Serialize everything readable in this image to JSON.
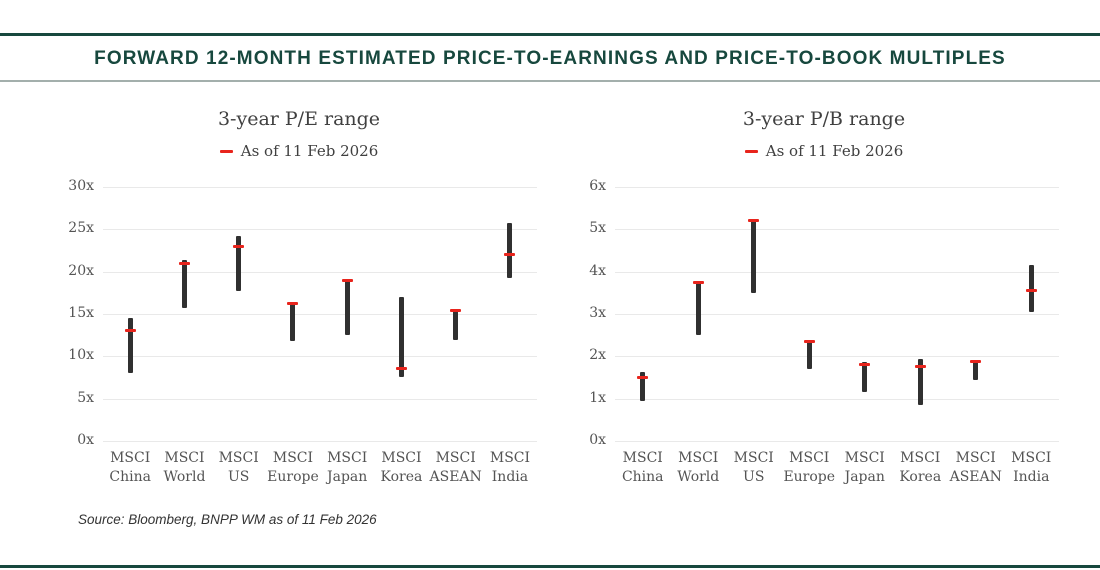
{
  "page": {
    "header_title": "FORWARD 12-MONTH ESTIMATED PRICE-TO-EARNINGS AND PRICE-TO-BOOK MULTIPLES",
    "source_note": "Source: Bloomberg, BNPP WM as of 11 Feb 2026"
  },
  "colors": {
    "accent_teal": "#17483E",
    "divider_gray": "#A3AFAC",
    "bar_dark": "#303030",
    "marker_red": "#E8241C",
    "gridline": "#E9E9E9",
    "chart_text": "#404040",
    "axis_text": "#545454"
  },
  "chart_data": [
    {
      "type": "bar",
      "subtype": "floating-range-bar-with-marker",
      "title": "3-year P/E range",
      "legend_label": "As of 11 Feb 2026",
      "legend_marker": "red-dash",
      "unit_suffix": "x",
      "ylim": [
        0,
        30
      ],
      "ytick_step": 5,
      "ytick_labels": [
        "0x",
        "5x",
        "10x",
        "15x",
        "20x",
        "25x",
        "30x"
      ],
      "grid": "horizontal-only",
      "categories": [
        "MSCI China",
        "MSCI World",
        "MSCI US",
        "MSCI Europe",
        "MSCI Japan",
        "MSCI Korea",
        "MSCI ASEAN",
        "MSCI India"
      ],
      "series": [
        {
          "name": "3-year range low",
          "values": [
            8.0,
            15.7,
            17.7,
            11.8,
            12.5,
            7.6,
            11.9,
            19.2
          ]
        },
        {
          "name": "3-year range high",
          "values": [
            14.5,
            21.4,
            24.2,
            16.4,
            19.1,
            17.0,
            15.5,
            25.7
          ]
        },
        {
          "name": "As of 11 Feb 2026",
          "values": [
            13.0,
            21.0,
            23.0,
            16.3,
            19.0,
            8.6,
            15.4,
            22.0
          ]
        }
      ]
    },
    {
      "type": "bar",
      "subtype": "floating-range-bar-with-marker",
      "title": "3-year P/B range",
      "legend_label": "As of 11 Feb 2026",
      "legend_marker": "red-dash",
      "unit_suffix": "x",
      "ylim": [
        0,
        6
      ],
      "ytick_step": 1,
      "ytick_labels": [
        "0x",
        "1x",
        "2x",
        "3x",
        "4x",
        "5x",
        "6x"
      ],
      "grid": "horizontal-only",
      "categories": [
        "MSCI China",
        "MSCI World",
        "MSCI US",
        "MSCI Europe",
        "MSCI Japan",
        "MSCI Korea",
        "MSCI ASEAN",
        "MSCI India"
      ],
      "series": [
        {
          "name": "3-year range low",
          "values": [
            0.95,
            2.5,
            3.5,
            1.7,
            1.15,
            0.85,
            1.45,
            3.05
          ]
        },
        {
          "name": "3-year range high",
          "values": [
            1.62,
            3.78,
            5.22,
            2.38,
            1.86,
            1.95,
            1.92,
            4.15
          ]
        },
        {
          "name": "As of 11 Feb 2026",
          "values": [
            1.5,
            3.75,
            5.2,
            2.35,
            1.8,
            1.75,
            1.88,
            3.55
          ]
        }
      ]
    }
  ]
}
